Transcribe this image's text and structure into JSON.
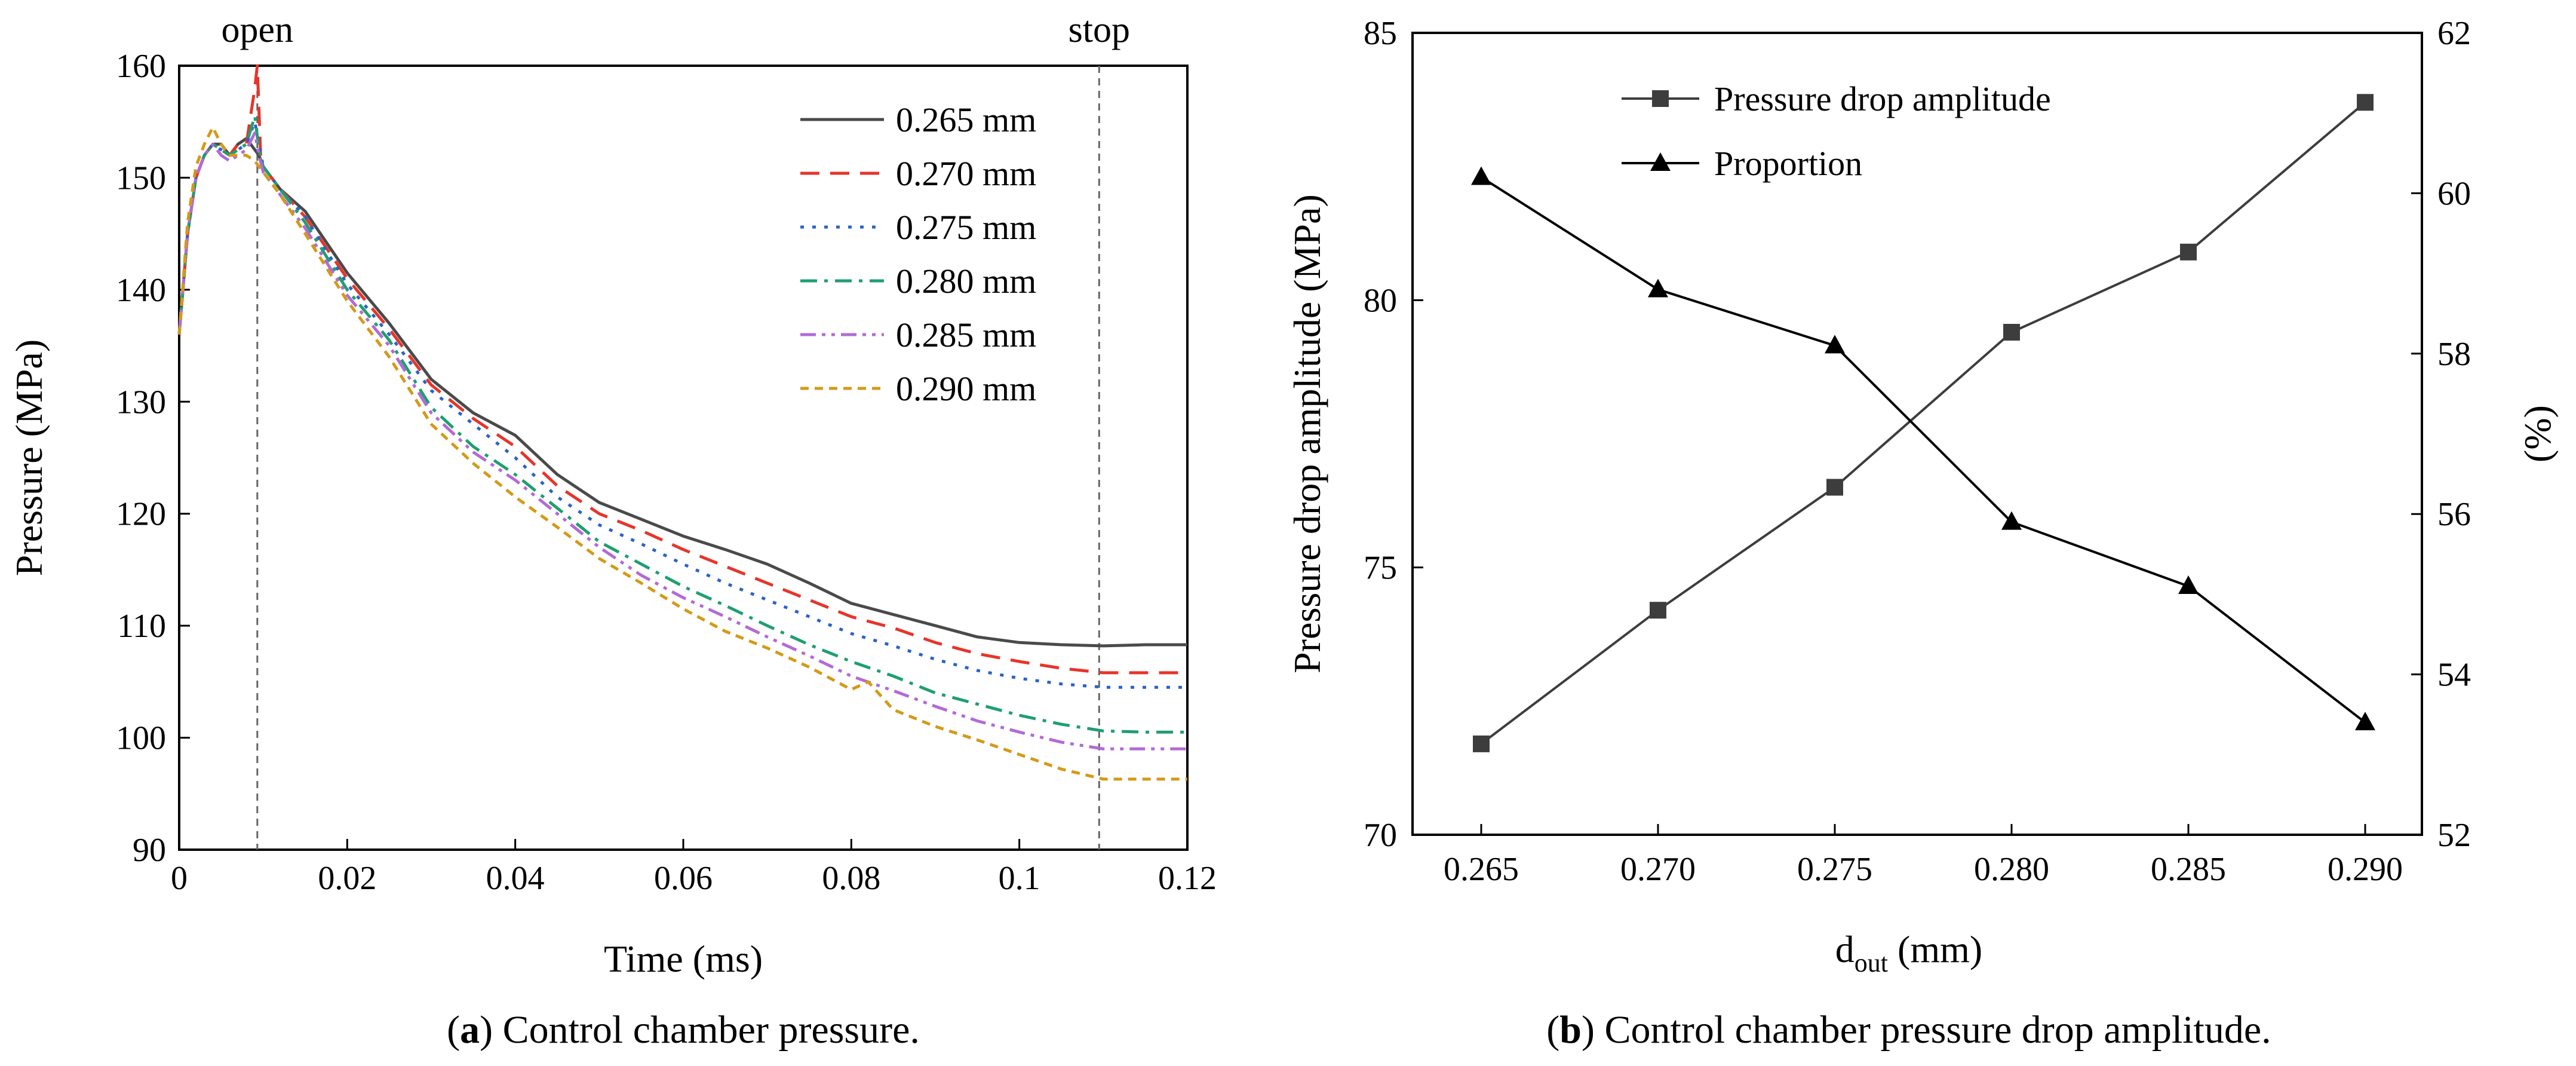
{
  "figure": {
    "caption_a": {
      "label": "a",
      "text": " Control chamber pressure."
    },
    "caption_b": {
      "label": "b",
      "text": " Control chamber pressure drop amplitude."
    }
  },
  "chart_data": [
    {
      "id": "a",
      "type": "line",
      "xlabel": "Time (ms)",
      "ylabel": "Pressure (MPa)",
      "xlim": [
        0,
        0.12
      ],
      "ylim": [
        90,
        160
      ],
      "xticks": [
        0,
        0.02,
        0.04,
        0.06,
        0.08,
        0.1,
        0.12
      ],
      "xtick_labels": [
        "0",
        "0.02",
        "0.04",
        "0.06",
        "0.08",
        "0.1",
        "0.12"
      ],
      "yticks": [
        90,
        100,
        110,
        120,
        130,
        140,
        150,
        160
      ],
      "yticks_labels": [
        "90",
        "100",
        "110",
        "120",
        "130",
        "140",
        "150",
        "160"
      ],
      "annotations": [
        {
          "text": "open",
          "x": 0.0093
        },
        {
          "text": "stop",
          "x": 0.1095
        }
      ],
      "legend_position": "top-right",
      "series": [
        {
          "name": "0.265 mm",
          "color": "#4a4a4a",
          "dash": "solid",
          "points": [
            [
              0,
              136
            ],
            [
              0.001,
              145
            ],
            [
              0.002,
              150
            ],
            [
              0.003,
              152
            ],
            [
              0.004,
              153
            ],
            [
              0.005,
              153
            ],
            [
              0.006,
              152
            ],
            [
              0.007,
              153
            ],
            [
              0.008,
              153.5
            ],
            [
              0.009,
              152.5
            ],
            [
              0.0095,
              152
            ],
            [
              0.01,
              151
            ],
            [
              0.012,
              149
            ],
            [
              0.015,
              147
            ],
            [
              0.02,
              141.5
            ],
            [
              0.025,
              137
            ],
            [
              0.03,
              132
            ],
            [
              0.035,
              129
            ],
            [
              0.04,
              127
            ],
            [
              0.045,
              123.5
            ],
            [
              0.05,
              121
            ],
            [
              0.055,
              119.5
            ],
            [
              0.06,
              118
            ],
            [
              0.065,
              116.8
            ],
            [
              0.07,
              115.5
            ],
            [
              0.075,
              113.8
            ],
            [
              0.08,
              112
            ],
            [
              0.085,
              111
            ],
            [
              0.09,
              110
            ],
            [
              0.095,
              109
            ],
            [
              0.1,
              108.5
            ],
            [
              0.105,
              108.3
            ],
            [
              0.11,
              108.2
            ],
            [
              0.115,
              108.3
            ],
            [
              0.12,
              108.3
            ]
          ]
        },
        {
          "name": "0.270 mm",
          "color": "#e8342a",
          "dash": "long-dash",
          "points": [
            [
              0,
              136
            ],
            [
              0.001,
              145
            ],
            [
              0.002,
              150
            ],
            [
              0.003,
              152
            ],
            [
              0.004,
              153
            ],
            [
              0.005,
              152.5
            ],
            [
              0.006,
              152
            ],
            [
              0.007,
              153
            ],
            [
              0.008,
              153
            ],
            [
              0.009,
              158
            ],
            [
              0.0093,
              160
            ],
            [
              0.0097,
              152
            ],
            [
              0.01,
              151
            ],
            [
              0.012,
              149
            ],
            [
              0.015,
              146.5
            ],
            [
              0.02,
              141
            ],
            [
              0.025,
              136.5
            ],
            [
              0.03,
              131.5
            ],
            [
              0.035,
              128.5
            ],
            [
              0.04,
              126
            ],
            [
              0.045,
              122.5
            ],
            [
              0.05,
              120
            ],
            [
              0.055,
              118.5
            ],
            [
              0.06,
              116.8
            ],
            [
              0.065,
              115.3
            ],
            [
              0.07,
              113.8
            ],
            [
              0.075,
              112.3
            ],
            [
              0.08,
              110.8
            ],
            [
              0.085,
              109.8
            ],
            [
              0.09,
              108.5
            ],
            [
              0.095,
              107.5
            ],
            [
              0.1,
              106.8
            ],
            [
              0.105,
              106.2
            ],
            [
              0.11,
              105.8
            ],
            [
              0.115,
              105.8
            ],
            [
              0.12,
              105.8
            ]
          ]
        },
        {
          "name": "0.275 mm",
          "color": "#2a63c9",
          "dash": "dot",
          "points": [
            [
              0,
              136
            ],
            [
              0.001,
              145
            ],
            [
              0.002,
              150
            ],
            [
              0.003,
              152
            ],
            [
              0.004,
              153
            ],
            [
              0.005,
              152.5
            ],
            [
              0.006,
              152
            ],
            [
              0.007,
              152.5
            ],
            [
              0.008,
              153
            ],
            [
              0.009,
              155
            ],
            [
              0.0095,
              153
            ],
            [
              0.01,
              151
            ],
            [
              0.012,
              149
            ],
            [
              0.015,
              146.5
            ],
            [
              0.02,
              140.5
            ],
            [
              0.025,
              136
            ],
            [
              0.03,
              131
            ],
            [
              0.035,
              128
            ],
            [
              0.04,
              125
            ],
            [
              0.045,
              121.5
            ],
            [
              0.05,
              119
            ],
            [
              0.055,
              117.3
            ],
            [
              0.06,
              115.5
            ],
            [
              0.065,
              113.8
            ],
            [
              0.07,
              112.3
            ],
            [
              0.075,
              110.8
            ],
            [
              0.08,
              109.3
            ],
            [
              0.085,
              108.2
            ],
            [
              0.09,
              107
            ],
            [
              0.095,
              106
            ],
            [
              0.1,
              105.3
            ],
            [
              0.105,
              104.8
            ],
            [
              0.11,
              104.5
            ],
            [
              0.115,
              104.5
            ],
            [
              0.12,
              104.5
            ]
          ]
        },
        {
          "name": "0.280 mm",
          "color": "#1f9f70",
          "dash": "dash-dot",
          "points": [
            [
              0,
              136
            ],
            [
              0.001,
              145
            ],
            [
              0.002,
              150
            ],
            [
              0.003,
              152
            ],
            [
              0.004,
              153
            ],
            [
              0.005,
              152.5
            ],
            [
              0.006,
              152
            ],
            [
              0.007,
              152.5
            ],
            [
              0.008,
              153
            ],
            [
              0.009,
              155.5
            ],
            [
              0.0095,
              152.5
            ],
            [
              0.01,
              151
            ],
            [
              0.012,
              149
            ],
            [
              0.015,
              146
            ],
            [
              0.02,
              140
            ],
            [
              0.025,
              135.5
            ],
            [
              0.03,
              129.5
            ],
            [
              0.035,
              126
            ],
            [
              0.04,
              123.5
            ],
            [
              0.045,
              120.5
            ],
            [
              0.05,
              117.5
            ],
            [
              0.055,
              115.5
            ],
            [
              0.06,
              113.5
            ],
            [
              0.065,
              111.8
            ],
            [
              0.07,
              110
            ],
            [
              0.075,
              108.3
            ],
            [
              0.08,
              106.8
            ],
            [
              0.085,
              105.5
            ],
            [
              0.09,
              104
            ],
            [
              0.095,
              103
            ],
            [
              0.1,
              102
            ],
            [
              0.105,
              101.2
            ],
            [
              0.11,
              100.6
            ],
            [
              0.115,
              100.5
            ],
            [
              0.12,
              100.5
            ]
          ]
        },
        {
          "name": "0.285 mm",
          "color": "#b36ad6",
          "dash": "dash-dot-dot",
          "points": [
            [
              0,
              136
            ],
            [
              0.001,
              145
            ],
            [
              0.002,
              150
            ],
            [
              0.003,
              152
            ],
            [
              0.004,
              153
            ],
            [
              0.005,
              152
            ],
            [
              0.006,
              151.5
            ],
            [
              0.007,
              152
            ],
            [
              0.008,
              152.5
            ],
            [
              0.009,
              154
            ],
            [
              0.0095,
              152
            ],
            [
              0.01,
              150.5
            ],
            [
              0.012,
              148.5
            ],
            [
              0.015,
              145.5
            ],
            [
              0.02,
              139.5
            ],
            [
              0.025,
              135
            ],
            [
              0.03,
              129
            ],
            [
              0.035,
              125.5
            ],
            [
              0.04,
              123
            ],
            [
              0.045,
              120
            ],
            [
              0.05,
              117
            ],
            [
              0.055,
              114.5
            ],
            [
              0.06,
              112.5
            ],
            [
              0.065,
              110.8
            ],
            [
              0.07,
              109
            ],
            [
              0.075,
              107.3
            ],
            [
              0.08,
              105.5
            ],
            [
              0.085,
              104.2
            ],
            [
              0.09,
              102.8
            ],
            [
              0.095,
              101.5
            ],
            [
              0.1,
              100.5
            ],
            [
              0.105,
              99.6
            ],
            [
              0.11,
              99
            ],
            [
              0.115,
              99
            ],
            [
              0.12,
              99
            ]
          ]
        },
        {
          "name": "0.290 mm",
          "color": "#d49a17",
          "dash": "short-dash",
          "points": [
            [
              0,
              136
            ],
            [
              0.001,
              146
            ],
            [
              0.002,
              151
            ],
            [
              0.003,
              153
            ],
            [
              0.004,
              154.5
            ],
            [
              0.005,
              153
            ],
            [
              0.006,
              152
            ],
            [
              0.007,
              152
            ],
            [
              0.008,
              152
            ],
            [
              0.009,
              151.5
            ],
            [
              0.0095,
              151
            ],
            [
              0.01,
              150.5
            ],
            [
              0.012,
              148.5
            ],
            [
              0.015,
              145
            ],
            [
              0.02,
              139
            ],
            [
              0.025,
              134
            ],
            [
              0.03,
              128
            ],
            [
              0.035,
              124.5
            ],
            [
              0.04,
              121.5
            ],
            [
              0.045,
              118.8
            ],
            [
              0.05,
              116
            ],
            [
              0.055,
              113.8
            ],
            [
              0.06,
              111.5
            ],
            [
              0.065,
              109.5
            ],
            [
              0.07,
              108
            ],
            [
              0.075,
              106.3
            ],
            [
              0.08,
              104.3
            ],
            [
              0.082,
              105
            ],
            [
              0.085,
              102.5
            ],
            [
              0.09,
              101
            ],
            [
              0.095,
              99.8
            ],
            [
              0.1,
              98.5
            ],
            [
              0.105,
              97.2
            ],
            [
              0.11,
              96.3
            ],
            [
              0.115,
              96.3
            ],
            [
              0.12,
              96.3
            ]
          ]
        }
      ]
    },
    {
      "id": "b",
      "type": "line",
      "xlabel": "d",
      "xlabel_subscript": "out",
      "xlabel_unit": " (mm)",
      "ylabel": "Pressure drop amplitude (MPa)",
      "y2label": "(%)",
      "categories": [
        "0.265",
        "0.270",
        "0.275",
        "0.280",
        "0.285",
        "0.290"
      ],
      "ylim": [
        70,
        85
      ],
      "yticks": [
        70,
        75,
        80,
        85
      ],
      "yticks_labels": [
        "70",
        "75",
        "80",
        "85"
      ],
      "y2lim": [
        52,
        62
      ],
      "y2ticks": [
        52,
        54,
        56,
        58,
        60,
        62
      ],
      "y2ticks_labels": [
        "52",
        "54",
        "56",
        "58",
        "60",
        "62"
      ],
      "legend_position": "top-center",
      "series": [
        {
          "name": "Pressure drop amplitude",
          "axis": "left",
          "marker": "square",
          "color": "#3d3d3d",
          "values": [
            71.7,
            74.2,
            76.5,
            79.4,
            80.9,
            83.7
          ]
        },
        {
          "name": "Proportion",
          "axis": "right",
          "marker": "triangle",
          "color": "#000000",
          "values": [
            60.2,
            58.8,
            58.1,
            55.9,
            55.1,
            53.4
          ]
        }
      ]
    }
  ]
}
